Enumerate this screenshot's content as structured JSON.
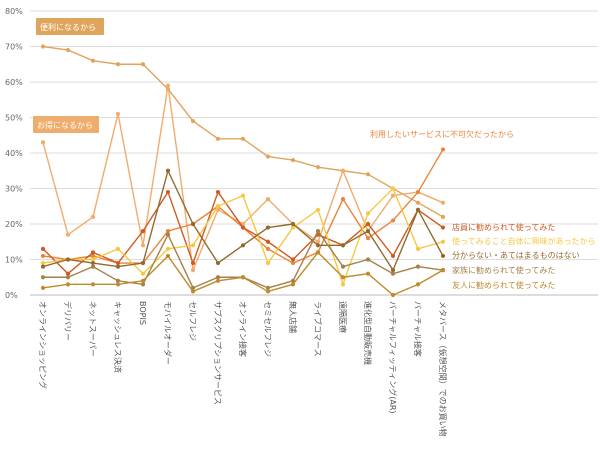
{
  "chart_data": {
    "type": "line",
    "ylim": [
      0,
      80
    ],
    "yticks": [
      0,
      10,
      20,
      30,
      40,
      50,
      60,
      70,
      80
    ],
    "ytick_labels": [
      "0%",
      "10%",
      "20%",
      "30%",
      "40%",
      "50%",
      "60%",
      "70%",
      "80%"
    ],
    "grid": true,
    "categories": [
      "オンラインショッピング",
      "デリバリー",
      "ネットスーパー",
      "キャッシュレス決済",
      "BOPIS",
      "モバイルオーダー",
      "セルフレジ",
      "サブスクリプションサービス",
      "オンライン接客",
      "セミセルフレジ",
      "無人店舗",
      "ライブコマース",
      "遠隔医療",
      "進化型自動販売機",
      "バーチャルフィッティング(AR)",
      "バーチャル接客",
      "メタバース（仮想空間）でのお買い物"
    ],
    "series": [
      {
        "name": "便利になるから",
        "color": "#e0a55c",
        "label_style": "box",
        "values": [
          70,
          69,
          66,
          65,
          65,
          58,
          49,
          44,
          44,
          39,
          38,
          36,
          35,
          34,
          30,
          26,
          22
        ]
      },
      {
        "name": "お得になるから",
        "color": "#f0ac6c",
        "label_style": "box",
        "values": [
          43,
          17,
          22,
          51,
          14,
          59,
          7,
          24,
          20,
          27,
          20,
          15,
          35,
          18,
          28,
          29,
          26
        ]
      },
      {
        "name": "利用したいサービスに不可欠だったから",
        "color": "#e9843a",
        "label_style": "text",
        "values": [
          11,
          10,
          11,
          9,
          9,
          18,
          20,
          25,
          19,
          13,
          9,
          12,
          27,
          16,
          21,
          29,
          41
        ]
      },
      {
        "name": "店員に勧められて使ってみた",
        "color": "#d05a22",
        "label_style": "text",
        "values": [
          13,
          6,
          12,
          9,
          18,
          29,
          9,
          29,
          19,
          15,
          10,
          17,
          14,
          20,
          11,
          24,
          19
        ]
      },
      {
        "name": "使ってみること自体に興味があったから",
        "color": "#f6c842",
        "label_style": "text",
        "values": [
          9,
          10,
          10,
          13,
          6,
          13,
          14,
          25,
          28,
          9,
          19,
          24,
          3,
          23,
          30,
          13,
          15
        ]
      },
      {
        "name": "分からない・あてはまるものはない",
        "color": "#936a2e",
        "label_style": "text",
        "values": [
          8,
          10,
          9,
          8,
          9,
          35,
          20,
          9,
          14,
          19,
          20,
          14,
          14,
          18,
          7,
          24,
          11
        ]
      },
      {
        "name": "家族に勧められて使ってみた",
        "color": "#a6804a",
        "label_style": "text",
        "values": [
          5,
          5,
          8,
          4,
          3,
          17,
          2,
          5,
          5,
          2,
          4,
          18,
          8,
          10,
          6,
          8,
          7
        ]
      },
      {
        "name": "友人に勧められて使ってみた",
        "color": "#bf8a2c",
        "label_style": "text",
        "values": [
          2,
          3,
          3,
          3,
          4,
          11,
          1,
          4,
          5,
          1,
          3,
          12,
          5,
          6,
          0,
          3,
          7
        ]
      }
    ]
  }
}
